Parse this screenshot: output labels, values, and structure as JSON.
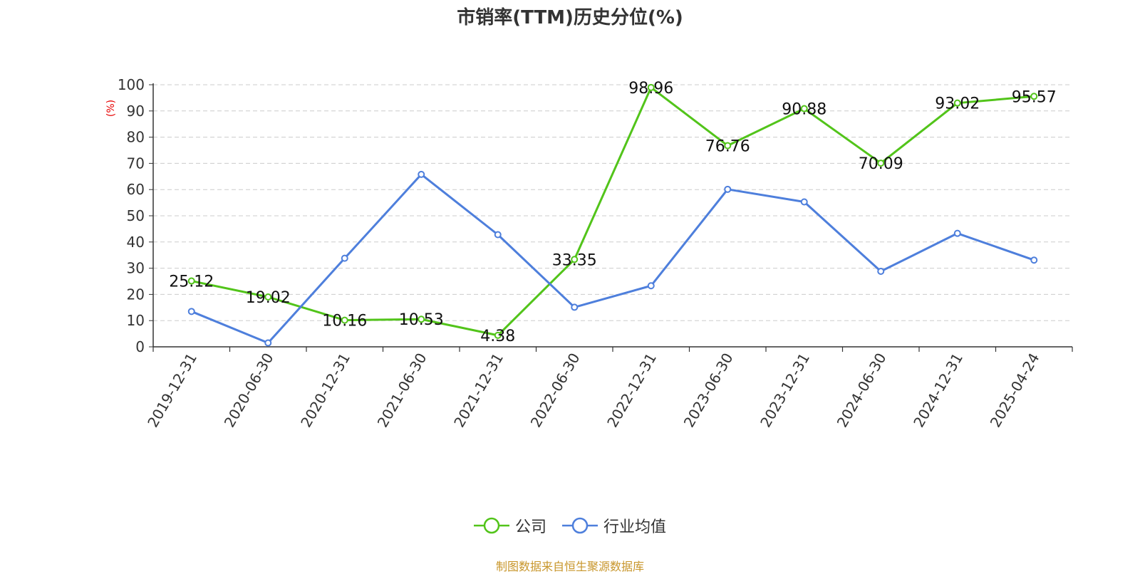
{
  "chart_data": {
    "type": "line",
    "title": "市销率(TTM)历史分位(%)",
    "ylabel": "(%)",
    "ylim": [
      0,
      100
    ],
    "yticks": [
      0,
      10,
      20,
      30,
      40,
      50,
      60,
      70,
      80,
      90,
      100
    ],
    "categories": [
      "2019-12-31",
      "2020-06-30",
      "2020-12-31",
      "2021-06-30",
      "2021-12-31",
      "2022-06-30",
      "2022-12-31",
      "2023-06-30",
      "2023-12-31",
      "2024-06-30",
      "2024-12-31",
      "2025-04-24"
    ],
    "grid": true,
    "legend_position": "bottom",
    "series": [
      {
        "name": "公司",
        "color": "#52c41a",
        "values": [
          25.12,
          19.02,
          10.16,
          10.53,
          4.38,
          33.35,
          98.96,
          76.76,
          90.88,
          70.09,
          93.02,
          95.57
        ],
        "data_labels": [
          "25.12",
          "19.02",
          "10.16",
          "10.53",
          "4.38",
          "33.35",
          "98.96",
          "76.76",
          "90.88",
          "70.09",
          "93.02",
          "95.57"
        ]
      },
      {
        "name": "行业均值",
        "color": "#4e7fdc",
        "values": [
          13.5,
          1.5,
          33.8,
          65.8,
          42.8,
          15.1,
          23.3,
          60.1,
          55.3,
          28.8,
          43.3,
          33.1
        ]
      }
    ],
    "source": "制图数据来自恒生聚源数据库"
  }
}
